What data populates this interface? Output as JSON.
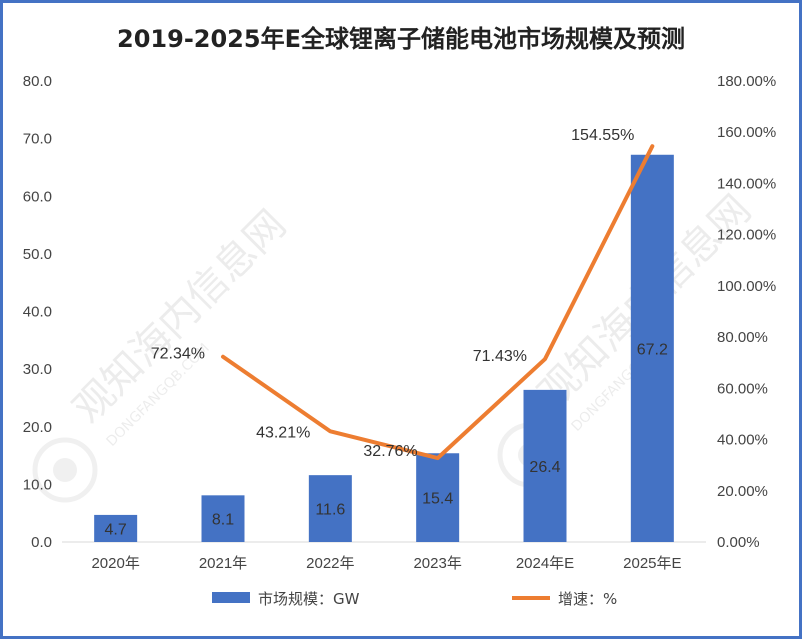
{
  "chart_data": {
    "type": "bar+line",
    "title": "2019-2025年E全球锂离子储能电池市场规模及预测",
    "categories": [
      "2020年",
      "2021年",
      "2022年",
      "2023年",
      "2024年E",
      "2025年E"
    ],
    "series": [
      {
        "name": "市场规模：GW",
        "type": "bar",
        "axis": "left",
        "values": [
          4.7,
          8.1,
          11.6,
          15.4,
          26.4,
          67.2
        ],
        "labels": [
          "4.7",
          "8.1",
          "11.6",
          "15.4",
          "26.4",
          "67.2"
        ]
      },
      {
        "name": "增速：%",
        "type": "line",
        "axis": "right",
        "values": [
          null,
          72.34,
          43.21,
          32.76,
          71.43,
          154.55
        ],
        "labels": [
          "",
          "72.34%",
          "43.21%",
          "32.76%",
          "71.43%",
          "154.55%"
        ]
      }
    ],
    "y_left": {
      "min": 0,
      "max": 80,
      "step": 10,
      "tick_labels": [
        "0.0",
        "10.0",
        "20.0",
        "30.0",
        "40.0",
        "50.0",
        "60.0",
        "70.0",
        "80.0"
      ]
    },
    "y_right": {
      "min": 0,
      "max": 180,
      "step": 20,
      "tick_labels": [
        "0.00%",
        "20.00%",
        "40.00%",
        "60.00%",
        "80.00%",
        "100.00%",
        "120.00%",
        "140.00%",
        "160.00%",
        "180.00%"
      ]
    },
    "legend_position": "bottom",
    "grid": false,
    "colors": {
      "bar": "#4472c4",
      "line": "#ed7d31",
      "border": "#4472c4"
    }
  },
  "watermark": {
    "cn": "观知海内信息网",
    "en": "DONGFANGQB.COM"
  }
}
